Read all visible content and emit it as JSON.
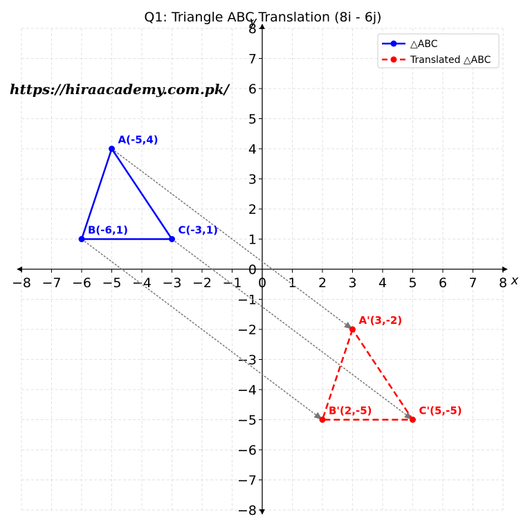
{
  "chart_data": {
    "type": "line",
    "title": "Q1: Triangle ABC Translation (8i - 6j)",
    "xlabel": "x",
    "ylabel": "y",
    "xlim": [
      -8,
      8
    ],
    "ylim": [
      -8,
      8
    ],
    "xticks": [
      -8,
      -7,
      -6,
      -5,
      -4,
      -3,
      -2,
      -1,
      0,
      1,
      2,
      3,
      4,
      5,
      6,
      7,
      8
    ],
    "yticks": [
      -8,
      -7,
      -6,
      -5,
      -4,
      -3,
      -2,
      -1,
      0,
      1,
      2,
      3,
      4,
      5,
      6,
      7,
      8
    ],
    "grid": true,
    "legend_position": "top-right",
    "translation_vector": [
      8,
      -6
    ],
    "series": [
      {
        "name": "△ABC",
        "color": "#0000ff",
        "linestyle": "solid",
        "points": [
          {
            "label": "A(-5,4)",
            "x": -5,
            "y": 4
          },
          {
            "label": "B(-6,1)",
            "x": -6,
            "y": 1
          },
          {
            "label": "C(-3,1)",
            "x": -3,
            "y": 1
          }
        ]
      },
      {
        "name": "Translated △ABC",
        "color": "#ff0000",
        "linestyle": "dashed",
        "points": [
          {
            "label": "A'(3,-2)",
            "x": 3,
            "y": -2
          },
          {
            "label": "B'(2,-5)",
            "x": 2,
            "y": -5
          },
          {
            "label": "C'(5,-5)",
            "x": 5,
            "y": -5
          }
        ]
      }
    ],
    "arrows": [
      {
        "from": [
          -5,
          4
        ],
        "to": [
          3,
          -2
        ]
      },
      {
        "from": [
          -6,
          1
        ],
        "to": [
          2,
          -5
        ]
      },
      {
        "from": [
          -3,
          1
        ],
        "to": [
          5,
          -5
        ]
      }
    ],
    "arrow_color": "#777777"
  },
  "watermark": "https://hiraacademy.com.pk/"
}
